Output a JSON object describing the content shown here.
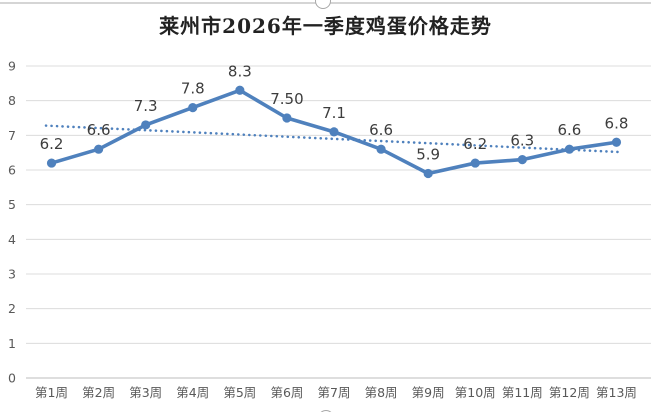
{
  "chart_data": {
    "type": "line",
    "title": "莱州市2026年一季度鸡蛋价格走势",
    "categories": [
      "第1周",
      "第2周",
      "第3周",
      "第4周",
      "第5周",
      "第6周",
      "第7周",
      "第8周",
      "第9周",
      "第10周",
      "第11周",
      "第12周",
      "第13周"
    ],
    "values": [
      6.2,
      6.6,
      7.3,
      7.8,
      8.3,
      7.5,
      7.1,
      6.6,
      5.9,
      6.2,
      6.3,
      6.6,
      6.8
    ],
    "data_labels": [
      "6.2",
      "6.6",
      "7.3",
      "7.8",
      "8.3",
      "7.50",
      "7.1",
      "6.6",
      "5.9",
      "6.2",
      "6.3",
      "6.6",
      "6.8"
    ],
    "xlabel": "",
    "ylabel": "",
    "ylim": [
      0,
      9
    ],
    "yticks": [
      "0",
      "1",
      "2",
      "3",
      "4",
      "5",
      "6",
      "7",
      "8",
      "9"
    ],
    "grid": "horizontal",
    "legend": "none",
    "trendline": {
      "type": "linear",
      "style": "dotted",
      "start_value": 7.28,
      "end_value": 6.52
    }
  },
  "colors": {
    "series": "#4f81bd",
    "marker": "#4f81bd",
    "trendline": "#4f81bd",
    "gridline": "#dcdcdc",
    "axis_line": "#c9c9c9",
    "axis_text": "#595959",
    "data_label_text": "#3d3d3d",
    "title_text": "#222222",
    "selection_border": "#d5d5d5",
    "selection_handle_border": "#a8a8a8"
  },
  "chrome": {
    "selection_handles": [
      "top-center",
      "bottom-center"
    ]
  }
}
